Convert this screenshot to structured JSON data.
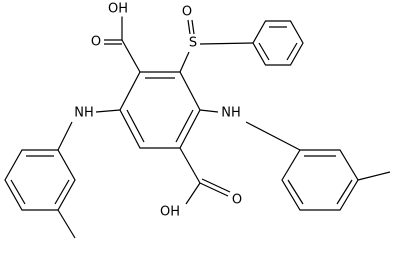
{
  "atoms": [
    {
      "label": "OH"
    },
    {
      "label": "O"
    },
    {
      "label": "S"
    },
    {
      "label": "O"
    },
    {
      "label": "NH"
    },
    {
      "label": "NH"
    },
    {
      "label": "OH"
    },
    {
      "label": "O"
    }
  ]
}
